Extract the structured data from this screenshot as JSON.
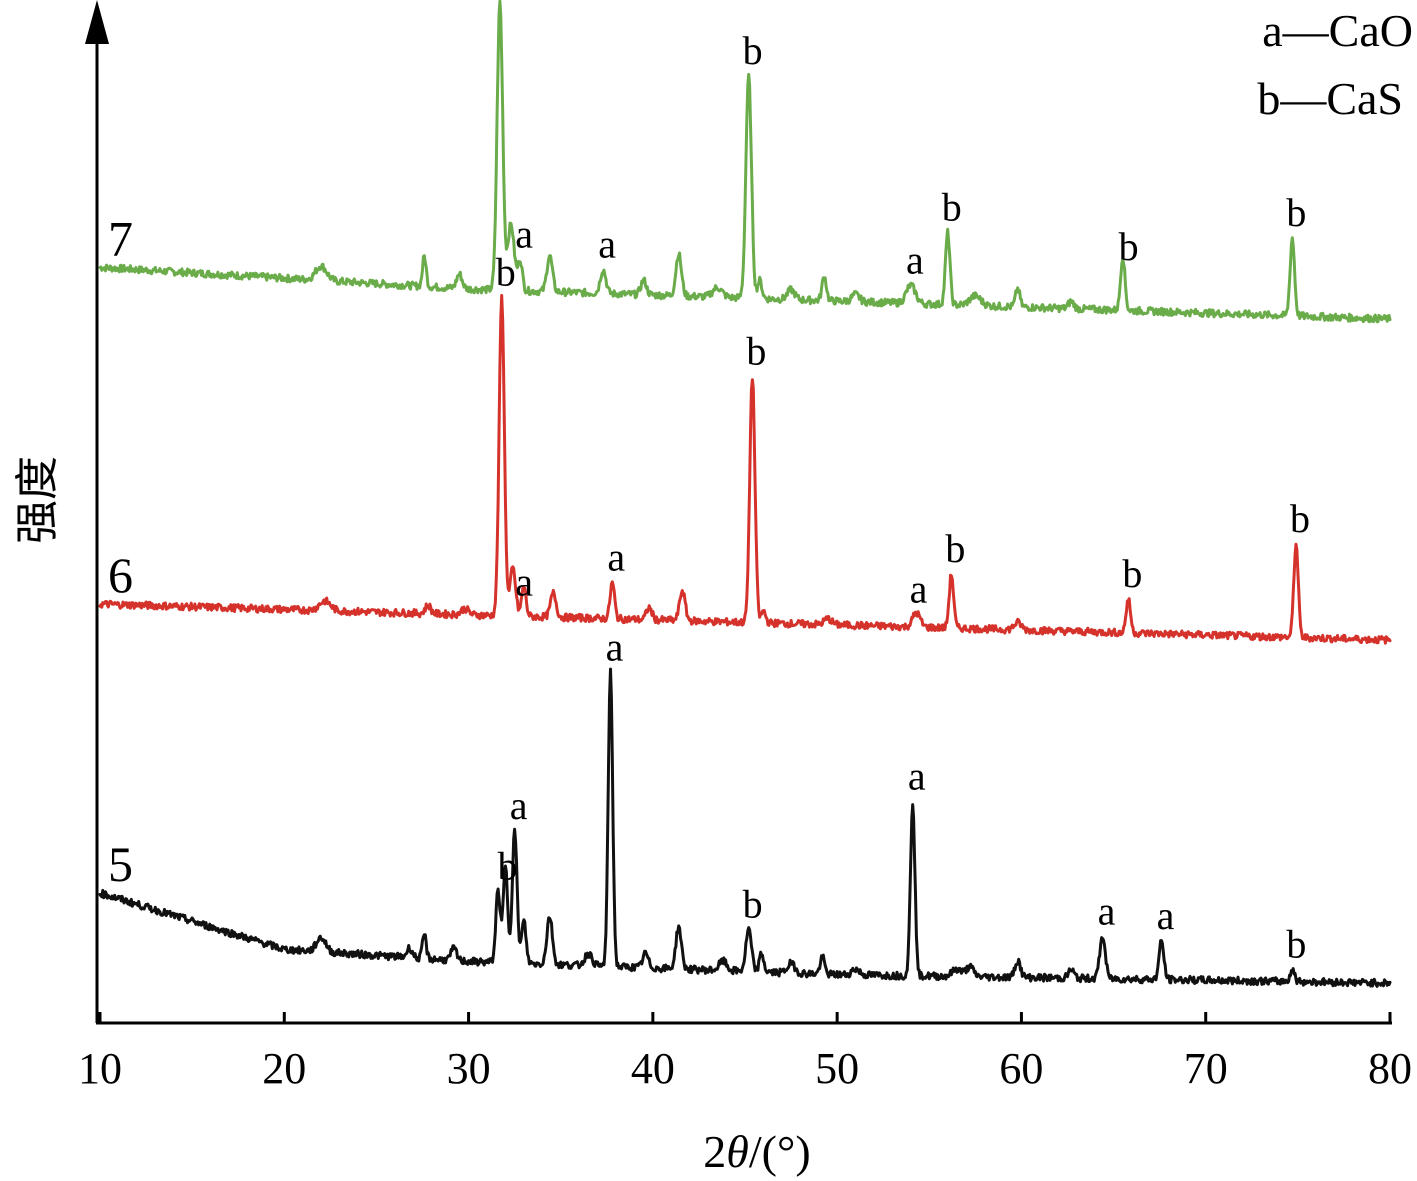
{
  "chart_data": {
    "type": "line",
    "title": "",
    "xlabel_prefix": "2",
    "xlabel_symbol": "θ",
    "xlabel_suffix": "/(°)",
    "ylabel": "强度",
    "xlim": [
      10,
      80
    ],
    "xticks": [
      10,
      20,
      30,
      40,
      50,
      60,
      70,
      80
    ],
    "xtick_labels": [
      "10",
      "20",
      "30",
      "40",
      "50",
      "60",
      "70",
      "80"
    ],
    "grid": false,
    "legend": {
      "placement": "top-right",
      "entries": [
        {
          "marker": "a",
          "dash": "—",
          "name": "CaO"
        },
        {
          "marker": "b",
          "dash": "—",
          "name": "CaS"
        }
      ]
    },
    "series": [
      {
        "name": "7",
        "color": "#6aac4a",
        "baseline": [
          [
            10,
            0.23
          ],
          [
            30,
            0.05
          ],
          [
            80,
            -0.2
          ]
        ],
        "peaks": [
          [
            22.0,
            0.12,
            0.3
          ],
          [
            27.6,
            0.25,
            0.1
          ],
          [
            29.5,
            0.12,
            0.15
          ],
          [
            31.7,
            2.4,
            0.15
          ],
          [
            32.3,
            0.55,
            0.18
          ],
          [
            32.8,
            0.25,
            0.12
          ],
          [
            34.4,
            0.3,
            0.15
          ],
          [
            37.3,
            0.2,
            0.15
          ],
          [
            39.5,
            0.12,
            0.15
          ],
          [
            41.4,
            0.35,
            0.15
          ],
          [
            43.5,
            0.08,
            0.25
          ],
          [
            45.2,
            1.85,
            0.15
          ],
          [
            45.8,
            0.15,
            0.12
          ],
          [
            47.5,
            0.08,
            0.2
          ],
          [
            49.3,
            0.2,
            0.12
          ],
          [
            51.0,
            0.06,
            0.2
          ],
          [
            54.0,
            0.15,
            0.25
          ],
          [
            56.0,
            0.6,
            0.12
          ],
          [
            57.5,
            0.08,
            0.3
          ],
          [
            59.8,
            0.15,
            0.12
          ],
          [
            62.7,
            0.06,
            0.15
          ],
          [
            65.5,
            0.45,
            0.12
          ],
          [
            74.7,
            0.65,
            0.12
          ]
        ]
      },
      {
        "name": "6",
        "color": "#d6322c",
        "baseline": [
          [
            10,
            0.05
          ],
          [
            30,
            -0.04
          ],
          [
            80,
            -0.25
          ]
        ],
        "peaks": [
          [
            22.2,
            0.08,
            0.3
          ],
          [
            27.8,
            0.07,
            0.15
          ],
          [
            29.8,
            0.05,
            0.2
          ],
          [
            31.8,
            2.65,
            0.14
          ],
          [
            32.4,
            0.4,
            0.15
          ],
          [
            33.0,
            0.25,
            0.12
          ],
          [
            34.6,
            0.2,
            0.15
          ],
          [
            37.8,
            0.3,
            0.12
          ],
          [
            39.8,
            0.1,
            0.15
          ],
          [
            41.6,
            0.25,
            0.15
          ],
          [
            45.4,
            2.05,
            0.14
          ],
          [
            46.0,
            0.1,
            0.12
          ],
          [
            49.5,
            0.05,
            0.2
          ],
          [
            54.3,
            0.12,
            0.2
          ],
          [
            56.2,
            0.45,
            0.12
          ],
          [
            59.8,
            0.06,
            0.2
          ],
          [
            65.8,
            0.28,
            0.12
          ],
          [
            74.9,
            0.78,
            0.12
          ]
        ]
      },
      {
        "name": "5",
        "color": "#111111",
        "baseline": [
          [
            10,
            0.35
          ],
          [
            20,
            -0.12
          ],
          [
            30,
            -0.22
          ],
          [
            50,
            -0.33
          ],
          [
            80,
            -0.4
          ]
        ],
        "peaks": [
          [
            22.0,
            0.12,
            0.25
          ],
          [
            26.8,
            0.08,
            0.15
          ],
          [
            27.6,
            0.2,
            0.1
          ],
          [
            29.2,
            0.1,
            0.15
          ],
          [
            31.6,
            0.6,
            0.12
          ],
          [
            32.0,
            0.8,
            0.12
          ],
          [
            32.5,
            1.1,
            0.13
          ],
          [
            33.0,
            0.35,
            0.12
          ],
          [
            34.4,
            0.4,
            0.15
          ],
          [
            36.5,
            0.1,
            0.2
          ],
          [
            37.7,
            2.45,
            0.12
          ],
          [
            39.6,
            0.12,
            0.15
          ],
          [
            41.4,
            0.35,
            0.15
          ],
          [
            43.8,
            0.08,
            0.2
          ],
          [
            45.2,
            0.35,
            0.15
          ],
          [
            45.9,
            0.15,
            0.12
          ],
          [
            47.5,
            0.08,
            0.2
          ],
          [
            49.2,
            0.14,
            0.12
          ],
          [
            51.0,
            0.05,
            0.2
          ],
          [
            54.1,
            1.45,
            0.12
          ],
          [
            56.5,
            0.06,
            0.25
          ],
          [
            57.2,
            0.08,
            0.2
          ],
          [
            59.8,
            0.14,
            0.15
          ],
          [
            62.7,
            0.07,
            0.15
          ],
          [
            64.4,
            0.35,
            0.15
          ],
          [
            67.6,
            0.32,
            0.13
          ],
          [
            74.7,
            0.1,
            0.12
          ]
        ]
      }
    ],
    "peak_labels": [
      {
        "series": "7",
        "text": "b",
        "x": 31.7
      },
      {
        "series": "7",
        "text": "a",
        "x": 32.8
      },
      {
        "series": "7",
        "text": "a",
        "x": 37.3
      },
      {
        "series": "7",
        "text": "b",
        "x": 45.2
      },
      {
        "series": "7",
        "text": "a",
        "x": 54.0
      },
      {
        "series": "7",
        "text": "b",
        "x": 56.0
      },
      {
        "series": "7",
        "text": "b",
        "x": 65.6
      },
      {
        "series": "7",
        "text": "b",
        "x": 74.7
      },
      {
        "series": "6",
        "text": "b",
        "x": 31.8
      },
      {
        "series": "6",
        "text": "a",
        "x": 32.8
      },
      {
        "series": "6",
        "text": "a",
        "x": 37.8
      },
      {
        "series": "6",
        "text": "b",
        "x": 45.4
      },
      {
        "series": "6",
        "text": "a",
        "x": 54.2
      },
      {
        "series": "6",
        "text": "b",
        "x": 56.2
      },
      {
        "series": "6",
        "text": "b",
        "x": 65.8
      },
      {
        "series": "6",
        "text": "b",
        "x": 74.9
      },
      {
        "series": "5",
        "text": "b",
        "x": 31.9
      },
      {
        "series": "5",
        "text": "a",
        "x": 32.5
      },
      {
        "series": "5",
        "text": "a",
        "x": 37.7
      },
      {
        "series": "5",
        "text": "b",
        "x": 45.2
      },
      {
        "series": "5",
        "text": "a",
        "x": 54.1
      },
      {
        "series": "5",
        "text": "a",
        "x": 64.4
      },
      {
        "series": "5",
        "text": "a",
        "x": 67.6
      },
      {
        "series": "5",
        "text": "b",
        "x": 74.7
      }
    ]
  }
}
